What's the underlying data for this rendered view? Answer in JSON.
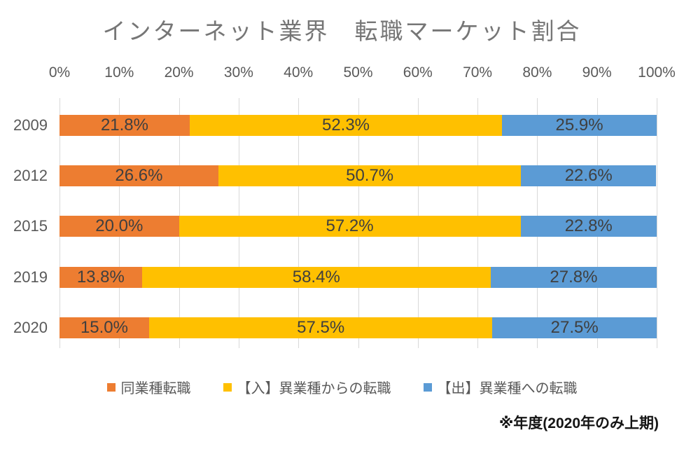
{
  "title": "インターネット業界　転職マーケット割合",
  "footnote": "※年度(2020年のみ上期)",
  "colors": {
    "gridline": "#d9d9d9",
    "title_text": "#767676",
    "axis_text": "#595959",
    "data_label_text": "#3f3f3f",
    "footnote_text": "#151515"
  },
  "chart_data": {
    "type": "bar",
    "orientation": "horizontal",
    "stacked": true,
    "title": "インターネット業界　転職マーケット割合",
    "categories": [
      "2009",
      "2012",
      "2015",
      "2019",
      "2020"
    ],
    "series": [
      {
        "name": "同業種転職",
        "color": "#ED7D31",
        "values": [
          21.8,
          26.6,
          20.0,
          13.8,
          15.0
        ]
      },
      {
        "name": "【入】異業種からの転職",
        "color": "#FFC000",
        "values": [
          52.3,
          50.7,
          57.2,
          58.4,
          57.5
        ]
      },
      {
        "name": "【出】異業種への転職",
        "color": "#5B9BD5",
        "values": [
          25.9,
          22.6,
          22.8,
          27.8,
          27.5
        ]
      }
    ],
    "x_ticks": [
      "0%",
      "10%",
      "20%",
      "30%",
      "40%",
      "50%",
      "60%",
      "70%",
      "80%",
      "90%",
      "100%"
    ],
    "xlim": [
      0,
      100
    ],
    "xlabel": "",
    "ylabel": "",
    "value_label_format": "{value}%",
    "value_label_decimals": 1,
    "grid": true,
    "legend_position": "bottom",
    "annotation": "※年度(2020年のみ上期)"
  }
}
